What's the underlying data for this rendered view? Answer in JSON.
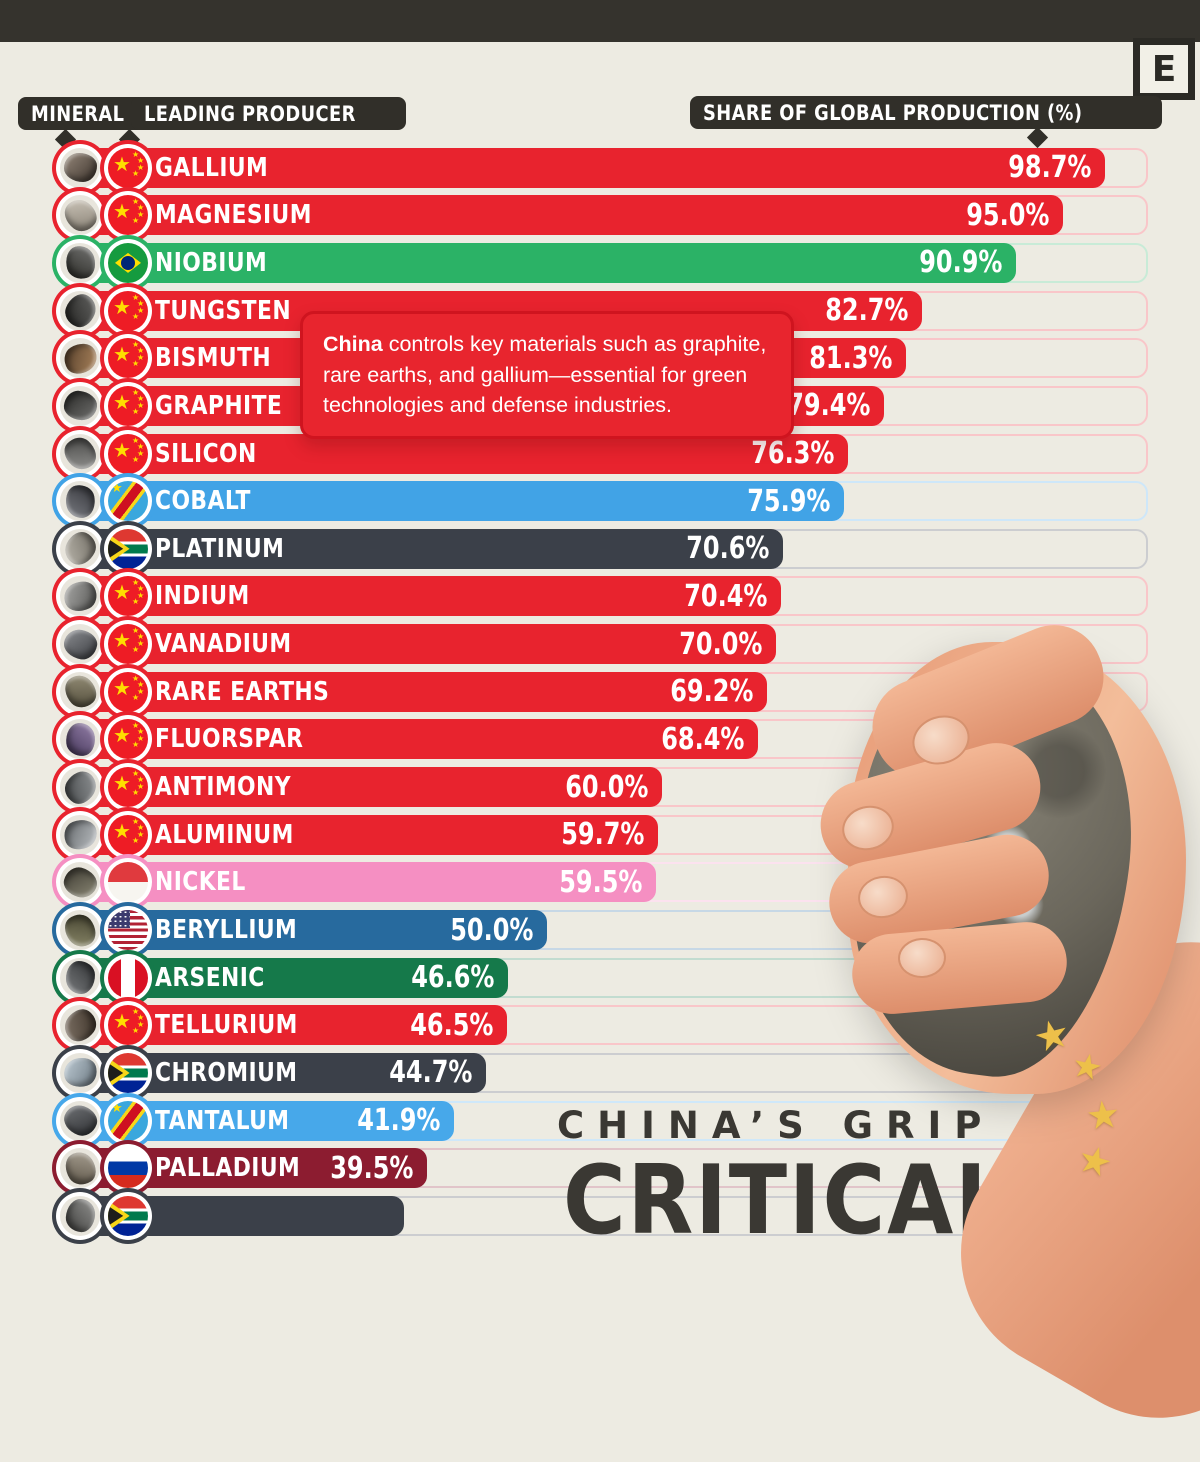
{
  "page": {
    "background": "#edebe2",
    "topbar_color": "#35332d"
  },
  "logo": {
    "label": "E"
  },
  "header": {
    "mineral_label": "MINERAL",
    "producer_label": "LEADING PRODUCER",
    "share_label": "SHARE OF GLOBAL PRODUCTION (%)"
  },
  "tooltip": {
    "bold": "China",
    "text": " controls key materials such as graphite, rare earths, and gallium—essential for green technologies and defense industries."
  },
  "title": {
    "line1": "CHINA’S GRIP ON",
    "line2": "CRITICAL"
  },
  "chart_data": {
    "type": "bar",
    "orientation": "horizontal",
    "unit": "%",
    "xlim": [
      0,
      103
    ],
    "title": "CHINA’S GRIP ON CRITICAL (minerals, partially cropped)",
    "columns": [
      "MINERAL",
      "LEADING PRODUCER",
      "SHARE OF GLOBAL PRODUCTION (%)"
    ],
    "rows": [
      {
        "name": "GALLIUM",
        "flag": "china",
        "value": 98.7,
        "label": "98.7%",
        "color": "#e8232e",
        "rock": [
          "#8c7f72",
          "#4a4038"
        ]
      },
      {
        "name": "MAGNESIUM",
        "flag": "china",
        "value": 95.0,
        "label": "95.0%",
        "color": "#e8232e",
        "rock": [
          "#c9c2b6",
          "#8d867a"
        ]
      },
      {
        "name": "NIOBIUM",
        "flag": "brazil",
        "value": 90.9,
        "label": "90.9%",
        "color": "#2bb266",
        "rock": [
          "#6e6e6c",
          "#33332f"
        ]
      },
      {
        "name": "TUNGSTEN",
        "flag": "china",
        "value": 82.7,
        "label": "82.7%",
        "color": "#e8232e",
        "rock": [
          "#5f5f5d",
          "#2b2b29"
        ]
      },
      {
        "name": "BISMUTH",
        "flag": "china",
        "value": 81.3,
        "label": "81.3%",
        "color": "#e8232e",
        "rock": [
          "#a57f58",
          "#5e4630"
        ]
      },
      {
        "name": "GRAPHITE",
        "flag": "china",
        "value": 79.4,
        "label": "79.4%",
        "color": "#e8232e",
        "rock": [
          "#6a6a68",
          "#323230"
        ]
      },
      {
        "name": "SILICON",
        "flag": "china",
        "value": 76.3,
        "label": "76.3%",
        "color": "#e8232e",
        "rock": [
          "#8f8f8d",
          "#4e4e4c"
        ]
      },
      {
        "name": "COBALT",
        "flag": "drc",
        "value": 75.9,
        "label": "75.9%",
        "color": "#41a3e6",
        "rock": [
          "#73757b",
          "#3c3d42"
        ]
      },
      {
        "name": "PLATINUM",
        "flag": "za",
        "value": 70.6,
        "label": "70.6%",
        "color": "#3b4049",
        "rock": [
          "#b5b1a7",
          "#77736a"
        ]
      },
      {
        "name": "INDIUM",
        "flag": "china",
        "value": 70.4,
        "label": "70.4%",
        "color": "#e8232e",
        "rock": [
          "#a3a3a1",
          "#5f5f5d"
        ]
      },
      {
        "name": "VANADIUM",
        "flag": "china",
        "value": 70.0,
        "label": "70.0%",
        "color": "#e8232e",
        "rock": [
          "#84868a",
          "#46484c"
        ]
      },
      {
        "name": "RARE EARTHS",
        "flag": "china",
        "value": 69.2,
        "label": "69.2%",
        "color": "#e8232e",
        "rock": [
          "#948d76",
          "#55503e"
        ]
      },
      {
        "name": "FLUORSPAR",
        "flag": "china",
        "value": 68.4,
        "label": "68.4%",
        "color": "#e8232e",
        "rock": [
          "#8f7ba3",
          "#4e3f63"
        ]
      },
      {
        "name": "ANTIMONY",
        "flag": "china",
        "value": 60.0,
        "label": "60.0%",
        "color": "#e8232e",
        "rock": [
          "#8d9092",
          "#4c4f51"
        ]
      },
      {
        "name": "ALUMINUM",
        "flag": "china",
        "value": 59.7,
        "label": "59.7%",
        "color": "#e8232e",
        "rock": [
          "#b4b8bb",
          "#6e7275"
        ]
      },
      {
        "name": "NICKEL",
        "flag": "indonesia",
        "value": 59.5,
        "label": "59.5%",
        "color": "#f58fc2",
        "rock": [
          "#84816f",
          "#47443a"
        ]
      },
      {
        "name": "BERYLLIUM",
        "flag": "usa",
        "value": 50.0,
        "label": "50.0%",
        "color": "#276a9e",
        "rock": [
          "#868466",
          "#4a4834"
        ]
      },
      {
        "name": "ARSENIC",
        "flag": "peru",
        "value": 46.6,
        "label": "46.6%",
        "color": "#15794a",
        "rock": [
          "#737577",
          "#3a3c3e"
        ]
      },
      {
        "name": "TELLURIUM",
        "flag": "china",
        "value": 46.5,
        "label": "46.5%",
        "color": "#e8232e",
        "rock": [
          "#7c7064",
          "#42382e"
        ]
      },
      {
        "name": "CHROMIUM",
        "flag": "za",
        "value": 44.7,
        "label": "44.7%",
        "color": "#3b4049",
        "rock": [
          "#b7c4cd",
          "#75828b"
        ]
      },
      {
        "name": "TANTALUM",
        "flag": "drc",
        "value": 41.9,
        "label": "41.9%",
        "color": "#47a8ea",
        "rock": [
          "#6b6d70",
          "#36383b"
        ]
      },
      {
        "name": "PALLADIUM",
        "flag": "russia",
        "value": 39.5,
        "label": "39.5%",
        "color": "#8c1c30",
        "rock": [
          "#a59d8f",
          "#635b4e"
        ]
      },
      {
        "name": "",
        "flag": "za",
        "value": 37.5,
        "label": "",
        "color": "#3b4049",
        "rock": [
          "#8a8a88",
          "#4a4a48"
        ],
        "partial": true
      }
    ],
    "legend_flags": [
      "china",
      "brazil",
      "drc",
      "south-africa",
      "indonesia",
      "usa",
      "peru",
      "russia"
    ],
    "grid": false
  },
  "stars": {
    "icon": "china-star-icon",
    "color": "#edc04a",
    "count": 4
  }
}
